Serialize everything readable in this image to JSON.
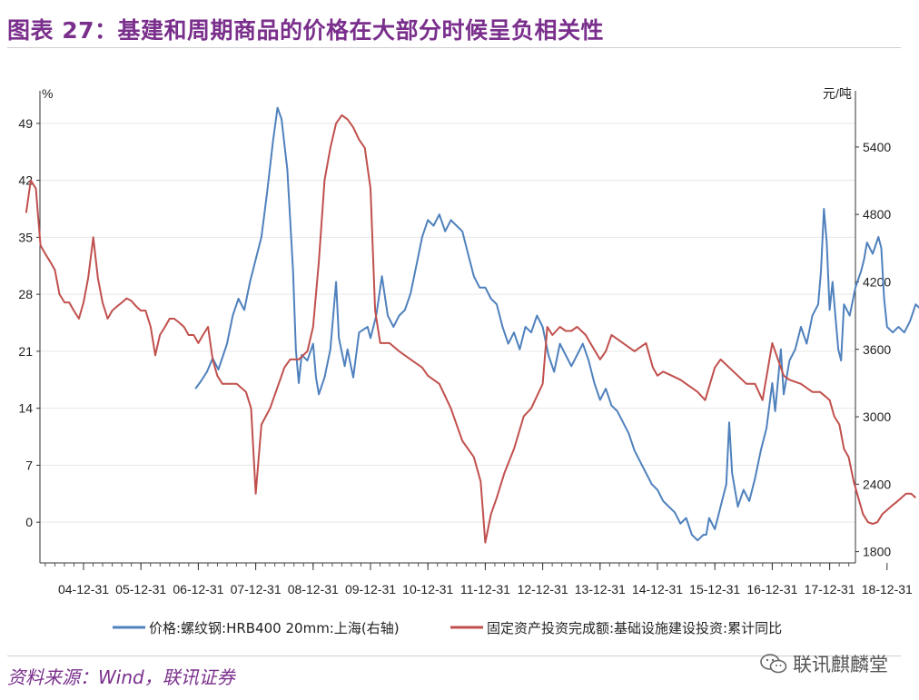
{
  "title": "图表 27：基建和周期商品的价格在大部分时候呈负相关性",
  "source": "资料来源：Wind，联讯证券",
  "watermark": "联讯麒麟堂",
  "colors": {
    "title": "#7a2f8c",
    "blue": "#4f81bd",
    "red": "#c0504d"
  },
  "chart_data": {
    "type": "line",
    "left_unit": "%",
    "right_unit": "元/吨",
    "left_ticks": [
      "0",
      "7",
      "14",
      "21",
      "28",
      "35",
      "42",
      "49"
    ],
    "right_ticks": [
      "1800",
      "2400",
      "3000",
      "3600",
      "4200",
      "4800",
      "5400"
    ],
    "ylim_left": [
      -5,
      53
    ],
    "ylim_right": [
      1700,
      5900
    ],
    "x_ticks": [
      "04-12-31",
      "05-12-31",
      "06-12-31",
      "07-12-31",
      "08-12-31",
      "09-12-31",
      "10-12-31",
      "11-12-31",
      "12-12-31",
      "13-12-31",
      "14-12-31",
      "15-12-31",
      "16-12-31",
      "17-12-31",
      "18-12-31"
    ],
    "grid": true,
    "legend_position": "bottom",
    "series": [
      {
        "name": "价格:螺纹钢:HRB400 20mm:上海(右轴)",
        "axis": "right",
        "color": "#4f81bd",
        "points": [
          [
            2006.95,
            3250
          ],
          [
            2007.05,
            3320
          ],
          [
            2007.15,
            3400
          ],
          [
            2007.25,
            3520
          ],
          [
            2007.35,
            3420
          ],
          [
            2007.5,
            3650
          ],
          [
            2007.6,
            3900
          ],
          [
            2007.7,
            4050
          ],
          [
            2007.8,
            3950
          ],
          [
            2007.9,
            4200
          ],
          [
            2008.0,
            4400
          ],
          [
            2008.1,
            4600
          ],
          [
            2008.2,
            5000
          ],
          [
            2008.3,
            5450
          ],
          [
            2008.38,
            5750
          ],
          [
            2008.45,
            5650
          ],
          [
            2008.55,
            5200
          ],
          [
            2008.65,
            4300
          ],
          [
            2008.7,
            3600
          ],
          [
            2008.75,
            3300
          ],
          [
            2008.8,
            3550
          ],
          [
            2008.9,
            3500
          ],
          [
            2009.0,
            3650
          ],
          [
            2009.05,
            3350
          ],
          [
            2009.1,
            3200
          ],
          [
            2009.2,
            3350
          ],
          [
            2009.3,
            3600
          ],
          [
            2009.4,
            4200
          ],
          [
            2009.45,
            3700
          ],
          [
            2009.55,
            3450
          ],
          [
            2009.6,
            3600
          ],
          [
            2009.7,
            3350
          ],
          [
            2009.8,
            3750
          ],
          [
            2009.95,
            3800
          ],
          [
            2010.0,
            3700
          ],
          [
            2010.1,
            3900
          ],
          [
            2010.2,
            4250
          ],
          [
            2010.3,
            3900
          ],
          [
            2010.4,
            3800
          ],
          [
            2010.5,
            3900
          ],
          [
            2010.6,
            3950
          ],
          [
            2010.7,
            4100
          ],
          [
            2010.8,
            4350
          ],
          [
            2010.9,
            4600
          ],
          [
            2011.0,
            4750
          ],
          [
            2011.1,
            4700
          ],
          [
            2011.2,
            4800
          ],
          [
            2011.3,
            4650
          ],
          [
            2011.4,
            4750
          ],
          [
            2011.5,
            4700
          ],
          [
            2011.6,
            4650
          ],
          [
            2011.7,
            4450
          ],
          [
            2011.8,
            4250
          ],
          [
            2011.9,
            4150
          ],
          [
            2012.0,
            4150
          ],
          [
            2012.1,
            4050
          ],
          [
            2012.2,
            4000
          ],
          [
            2012.3,
            3800
          ],
          [
            2012.4,
            3650
          ],
          [
            2012.5,
            3750
          ],
          [
            2012.6,
            3600
          ],
          [
            2012.7,
            3800
          ],
          [
            2012.8,
            3750
          ],
          [
            2012.9,
            3900
          ],
          [
            2013.0,
            3800
          ],
          [
            2013.1,
            3550
          ],
          [
            2013.2,
            3400
          ],
          [
            2013.3,
            3650
          ],
          [
            2013.4,
            3550
          ],
          [
            2013.5,
            3450
          ],
          [
            2013.6,
            3550
          ],
          [
            2013.7,
            3650
          ],
          [
            2013.8,
            3500
          ],
          [
            2013.9,
            3300
          ],
          [
            2014.0,
            3150
          ],
          [
            2014.1,
            3250
          ],
          [
            2014.2,
            3100
          ],
          [
            2014.3,
            3050
          ],
          [
            2014.4,
            2950
          ],
          [
            2014.5,
            2850
          ],
          [
            2014.6,
            2700
          ],
          [
            2014.7,
            2600
          ],
          [
            2014.8,
            2500
          ],
          [
            2014.9,
            2400
          ],
          [
            2015.0,
            2350
          ],
          [
            2015.1,
            2250
          ],
          [
            2015.2,
            2200
          ],
          [
            2015.3,
            2150
          ],
          [
            2015.4,
            2050
          ],
          [
            2015.5,
            2100
          ],
          [
            2015.6,
            1950
          ],
          [
            2015.7,
            1900
          ],
          [
            2015.8,
            1950
          ],
          [
            2015.85,
            1950
          ],
          [
            2015.9,
            2100
          ],
          [
            2016.0,
            2000
          ],
          [
            2016.1,
            2200
          ],
          [
            2016.2,
            2400
          ],
          [
            2016.25,
            2950
          ],
          [
            2016.3,
            2500
          ],
          [
            2016.4,
            2200
          ],
          [
            2016.5,
            2350
          ],
          [
            2016.6,
            2250
          ],
          [
            2016.7,
            2450
          ],
          [
            2016.8,
            2700
          ],
          [
            2016.9,
            2900
          ],
          [
            2017.0,
            3300
          ],
          [
            2017.05,
            3050
          ],
          [
            2017.15,
            3600
          ],
          [
            2017.2,
            3200
          ],
          [
            2017.3,
            3500
          ],
          [
            2017.4,
            3600
          ],
          [
            2017.5,
            3800
          ],
          [
            2017.6,
            3650
          ],
          [
            2017.7,
            3900
          ],
          [
            2017.8,
            4000
          ],
          [
            2017.85,
            4300
          ],
          [
            2017.9,
            4850
          ],
          [
            2017.95,
            4550
          ],
          [
            2018.0,
            3950
          ],
          [
            2018.05,
            4200
          ],
          [
            2018.1,
            3900
          ],
          [
            2018.15,
            3600
          ],
          [
            2018.2,
            3500
          ],
          [
            2018.25,
            4000
          ],
          [
            2018.35,
            3900
          ],
          [
            2018.45,
            4150
          ],
          [
            2018.55,
            4300
          ],
          [
            2018.6,
            4400
          ],
          [
            2018.65,
            4550
          ],
          [
            2018.75,
            4450
          ],
          [
            2018.85,
            4600
          ],
          [
            2018.9,
            4500
          ],
          [
            2018.95,
            4050
          ],
          [
            2019.0,
            3800
          ],
          [
            2019.1,
            3750
          ],
          [
            2019.2,
            3800
          ],
          [
            2019.3,
            3750
          ],
          [
            2019.4,
            3850
          ],
          [
            2019.5,
            4000
          ],
          [
            2019.6,
            3950
          ],
          [
            2019.65,
            4000
          ],
          [
            2019.75,
            3850
          ]
        ]
      },
      {
        "name": "固定资产投资完成额:基础设施建设投资:累计同比",
        "axis": "left",
        "color": "#c0504d",
        "points": [
          [
            2004.0,
            38
          ],
          [
            2004.08,
            42
          ],
          [
            2004.17,
            41
          ],
          [
            2004.25,
            34
          ],
          [
            2004.33,
            33
          ],
          [
            2004.42,
            32
          ],
          [
            2004.5,
            31
          ],
          [
            2004.58,
            28
          ],
          [
            2004.67,
            27
          ],
          [
            2004.75,
            27
          ],
          [
            2004.83,
            26
          ],
          [
            2004.92,
            25
          ],
          [
            2005.0,
            27
          ],
          [
            2005.08,
            30
          ],
          [
            2005.17,
            35
          ],
          [
            2005.25,
            30
          ],
          [
            2005.33,
            27
          ],
          [
            2005.42,
            25
          ],
          [
            2005.5,
            26
          ],
          [
            2005.58,
            26.5
          ],
          [
            2005.67,
            27
          ],
          [
            2005.75,
            27.5
          ],
          [
            2005.83,
            27.2
          ],
          [
            2005.92,
            26.5
          ],
          [
            2006.0,
            26
          ],
          [
            2006.08,
            26
          ],
          [
            2006.17,
            24
          ],
          [
            2006.25,
            20.5
          ],
          [
            2006.33,
            23
          ],
          [
            2006.42,
            24
          ],
          [
            2006.5,
            25
          ],
          [
            2006.58,
            25
          ],
          [
            2006.67,
            24.5
          ],
          [
            2006.75,
            24
          ],
          [
            2006.83,
            23
          ],
          [
            2006.92,
            23
          ],
          [
            2007.0,
            22
          ],
          [
            2007.08,
            23
          ],
          [
            2007.17,
            24
          ],
          [
            2007.25,
            20
          ],
          [
            2007.33,
            18
          ],
          [
            2007.42,
            17
          ],
          [
            2007.5,
            17
          ],
          [
            2007.58,
            17
          ],
          [
            2007.67,
            17
          ],
          [
            2007.75,
            16.5
          ],
          [
            2007.83,
            16
          ],
          [
            2007.92,
            14
          ],
          [
            2008.0,
            3.5
          ],
          [
            2008.1,
            12
          ],
          [
            2008.25,
            14
          ],
          [
            2008.4,
            17
          ],
          [
            2008.5,
            19
          ],
          [
            2008.6,
            20
          ],
          [
            2008.75,
            20
          ],
          [
            2008.9,
            21
          ],
          [
            2009.0,
            24
          ],
          [
            2009.1,
            32
          ],
          [
            2009.2,
            42
          ],
          [
            2009.3,
            46
          ],
          [
            2009.4,
            49
          ],
          [
            2009.5,
            50
          ],
          [
            2009.6,
            49.5
          ],
          [
            2009.7,
            48.5
          ],
          [
            2009.8,
            47
          ],
          [
            2009.9,
            46
          ],
          [
            2010.0,
            41
          ],
          [
            2010.08,
            26
          ],
          [
            2010.17,
            22
          ],
          [
            2010.25,
            22
          ],
          [
            2010.33,
            22
          ],
          [
            2010.5,
            21
          ],
          [
            2010.7,
            20
          ],
          [
            2010.9,
            19
          ],
          [
            2011.0,
            18
          ],
          [
            2011.2,
            17
          ],
          [
            2011.4,
            14
          ],
          [
            2011.6,
            10
          ],
          [
            2011.8,
            8
          ],
          [
            2011.92,
            5
          ],
          [
            2012.0,
            -2.5
          ],
          [
            2012.1,
            1
          ],
          [
            2012.2,
            3
          ],
          [
            2012.33,
            6
          ],
          [
            2012.5,
            9
          ],
          [
            2012.67,
            13
          ],
          [
            2012.8,
            14
          ],
          [
            2013.0,
            17
          ],
          [
            2013.08,
            24
          ],
          [
            2013.17,
            23
          ],
          [
            2013.3,
            24
          ],
          [
            2013.4,
            23.5
          ],
          [
            2013.5,
            23.5
          ],
          [
            2013.6,
            24
          ],
          [
            2013.75,
            23
          ],
          [
            2013.83,
            22
          ],
          [
            2014.0,
            20
          ],
          [
            2014.1,
            21
          ],
          [
            2014.2,
            23
          ],
          [
            2014.3,
            22.5
          ],
          [
            2014.4,
            22
          ],
          [
            2014.5,
            21.5
          ],
          [
            2014.6,
            21
          ],
          [
            2014.7,
            21.5
          ],
          [
            2014.8,
            22
          ],
          [
            2014.92,
            19
          ],
          [
            2015.0,
            18
          ],
          [
            2015.1,
            18.5
          ],
          [
            2015.25,
            18
          ],
          [
            2015.4,
            17.5
          ],
          [
            2015.5,
            17
          ],
          [
            2015.6,
            16.5
          ],
          [
            2015.7,
            16
          ],
          [
            2015.83,
            15
          ],
          [
            2016.0,
            19
          ],
          [
            2016.1,
            20
          ],
          [
            2016.25,
            19
          ],
          [
            2016.4,
            18
          ],
          [
            2016.55,
            17
          ],
          [
            2016.7,
            17
          ],
          [
            2016.83,
            15
          ],
          [
            2017.0,
            22
          ],
          [
            2017.1,
            20
          ],
          [
            2017.2,
            18
          ],
          [
            2017.3,
            17.5
          ],
          [
            2017.5,
            17
          ],
          [
            2017.7,
            16
          ],
          [
            2017.83,
            16
          ],
          [
            2017.92,
            15.5
          ],
          [
            2018.0,
            15
          ],
          [
            2018.08,
            13
          ],
          [
            2018.17,
            12
          ],
          [
            2018.25,
            9
          ],
          [
            2018.33,
            8
          ],
          [
            2018.42,
            5
          ],
          [
            2018.5,
            3
          ],
          [
            2018.58,
            1
          ],
          [
            2018.67,
            0
          ],
          [
            2018.75,
            -0.2
          ],
          [
            2018.83,
            0
          ],
          [
            2018.92,
            1
          ],
          [
            2019.0,
            1.5
          ],
          [
            2019.08,
            2
          ],
          [
            2019.17,
            2.5
          ],
          [
            2019.25,
            3
          ],
          [
            2019.33,
            3.5
          ],
          [
            2019.42,
            3.5
          ],
          [
            2019.5,
            3
          ]
        ]
      }
    ]
  }
}
